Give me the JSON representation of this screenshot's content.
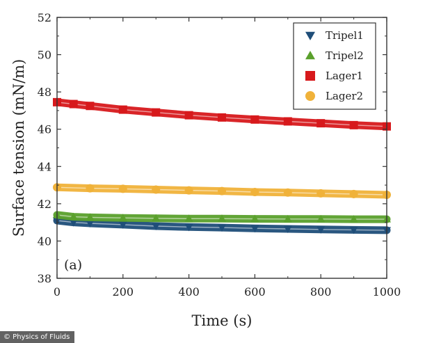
{
  "chart_data": {
    "type": "line",
    "title": "",
    "xlabel": "Time (s)",
    "ylabel": "Surface tension (mN/m)",
    "xlim": [
      0,
      1000
    ],
    "ylim": [
      38,
      52
    ],
    "xticks": [
      0,
      200,
      400,
      600,
      800,
      1000
    ],
    "yticks": [
      38,
      40,
      42,
      44,
      46,
      48,
      50,
      52
    ],
    "panel_label": "(a)",
    "legend_position": "top-right",
    "series": [
      {
        "name": "Tripel1",
        "color": "#1f4e79",
        "marker": "triangle-down",
        "x": [
          0,
          50,
          100,
          200,
          300,
          400,
          500,
          600,
          700,
          800,
          900,
          1000
        ],
        "y": [
          41.1,
          41.0,
          40.95,
          40.88,
          40.8,
          40.75,
          40.72,
          40.68,
          40.65,
          40.62,
          40.6,
          40.58
        ]
      },
      {
        "name": "Tripel2",
        "color": "#5aa02c",
        "marker": "triangle-up",
        "x": [
          0,
          50,
          100,
          200,
          300,
          400,
          500,
          600,
          700,
          800,
          900,
          1000
        ],
        "y": [
          41.4,
          41.3,
          41.27,
          41.24,
          41.22,
          41.2,
          41.2,
          41.19,
          41.18,
          41.18,
          41.17,
          41.17
        ]
      },
      {
        "name": "Lager1",
        "color": "#d7191c",
        "marker": "square",
        "x": [
          0,
          50,
          100,
          200,
          300,
          400,
          500,
          600,
          700,
          800,
          900,
          1000
        ],
        "y": [
          47.45,
          47.35,
          47.25,
          47.05,
          46.9,
          46.75,
          46.63,
          46.52,
          46.42,
          46.32,
          46.22,
          46.15
        ]
      },
      {
        "name": "Lager2",
        "color": "#f0b23a",
        "marker": "circle",
        "x": [
          0,
          100,
          200,
          300,
          400,
          500,
          600,
          700,
          800,
          900,
          1000
        ],
        "y": [
          42.88,
          42.83,
          42.8,
          42.76,
          42.72,
          42.68,
          42.63,
          42.6,
          42.56,
          42.52,
          42.48
        ]
      }
    ]
  },
  "credit": {
    "text": "© Physics of Fluids"
  }
}
